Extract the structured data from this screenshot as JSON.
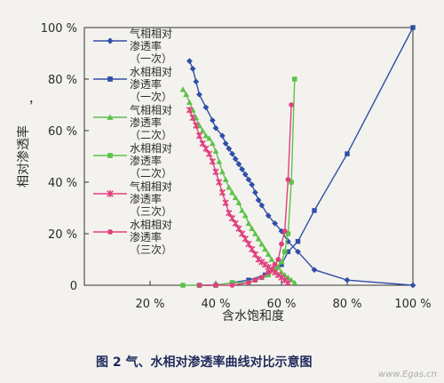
{
  "chart_data": {
    "type": "line",
    "xlabel": "含水饱和度",
    "ylabel": "相对渗透率",
    "ylabel_mark": "，",
    "xlim": [
      0,
      100
    ],
    "ylim": [
      0,
      100
    ],
    "x_ticks": [
      20,
      40,
      60,
      80,
      100
    ],
    "x_tick_labels": [
      "20 %",
      "40 %",
      "60 %",
      "80 %",
      "100 %"
    ],
    "y_ticks": [
      0,
      20,
      40,
      60,
      80,
      100
    ],
    "y_tick_labels": [
      "0",
      "20 %",
      "40 %",
      "60 %",
      "80 %",
      "100 %"
    ],
    "legend_position": "top-left",
    "series": [
      {
        "name": [
          "气相相对",
          "渗透率",
          "（一次）"
        ],
        "color": "#2f4fa8",
        "marker": "diamond",
        "x": [
          32,
          33,
          34,
          35,
          37,
          39,
          40,
          42,
          43,
          44,
          45,
          46,
          47,
          48,
          49,
          50,
          51,
          52,
          53,
          54,
          56,
          58,
          60,
          62,
          65,
          70,
          80,
          100
        ],
        "y": [
          87,
          84,
          79,
          74,
          69,
          64,
          61,
          58,
          55,
          53,
          51,
          49,
          47,
          45,
          43,
          41,
          39,
          36,
          33,
          31,
          27,
          24,
          21,
          17,
          13,
          6,
          2,
          0
        ]
      },
      {
        "name": [
          "水相相对",
          "渗透率",
          "（一次）"
        ],
        "color": "#2f4fa8",
        "marker": "square",
        "x": [
          35,
          40,
          45,
          50,
          55,
          60,
          62,
          65,
          70,
          80,
          100
        ],
        "y": [
          0,
          0,
          1,
          2,
          4,
          8,
          13,
          17,
          29,
          51,
          100
        ]
      },
      {
        "name": [
          "气相相对",
          "渗透率",
          "（二次）"
        ],
        "color": "#5cc24a",
        "marker": "triangle",
        "x": [
          30,
          31,
          32,
          33,
          34,
          35,
          36,
          37,
          38,
          39,
          40,
          41,
          42,
          43,
          44,
          45,
          46,
          47,
          48,
          49,
          50,
          51,
          52,
          53,
          54,
          55,
          56,
          57,
          58,
          59,
          60,
          61,
          62,
          63,
          64
        ],
        "y": [
          76,
          74,
          71,
          68,
          65,
          62,
          60,
          58,
          57,
          55,
          52,
          48,
          44,
          41,
          38,
          36,
          34,
          32,
          29,
          27,
          24,
          22,
          20,
          18,
          16,
          14,
          12,
          10,
          8,
          7,
          5,
          4,
          3,
          2,
          1
        ]
      },
      {
        "name": [
          "水相相对",
          "渗透率",
          "（二次）"
        ],
        "color": "#5cc24a",
        "marker": "square",
        "x": [
          30,
          35,
          40,
          45,
          50,
          52,
          54,
          56,
          58,
          60,
          61,
          62,
          63,
          64
        ],
        "y": [
          0,
          0,
          0,
          1,
          1,
          2,
          3,
          4,
          6,
          9,
          13,
          20,
          40,
          80
        ]
      },
      {
        "name": [
          "气相相对",
          "渗透率",
          "（三次）"
        ],
        "color": "#e0407e",
        "marker": "star",
        "x": [
          32,
          33,
          34,
          35,
          36,
          37,
          38,
          39,
          40,
          41,
          42,
          43,
          44,
          45,
          46,
          47,
          48,
          49,
          50,
          51,
          52,
          53,
          54,
          55,
          56,
          57,
          58,
          59,
          60,
          61,
          62
        ],
        "y": [
          68,
          65,
          62,
          58,
          55,
          53,
          51,
          48,
          44,
          40,
          36,
          32,
          28,
          26,
          24,
          22,
          20,
          18,
          16,
          14,
          12,
          10,
          9,
          8,
          7,
          6,
          5,
          4,
          3,
          2,
          1
        ]
      },
      {
        "name": [
          "水相相对",
          "渗透率",
          "（三次）"
        ],
        "color": "#e0407e",
        "marker": "circle",
        "x": [
          35,
          40,
          45,
          50,
          52,
          54,
          56,
          58,
          59,
          60,
          61,
          62,
          63
        ],
        "y": [
          0,
          0,
          0,
          1,
          2,
          3,
          5,
          8,
          10,
          16,
          21,
          41,
          70
        ]
      }
    ]
  },
  "caption": "图 2    气、水相对渗透率曲线对比示意图",
  "watermark": "www.Egas.cn"
}
